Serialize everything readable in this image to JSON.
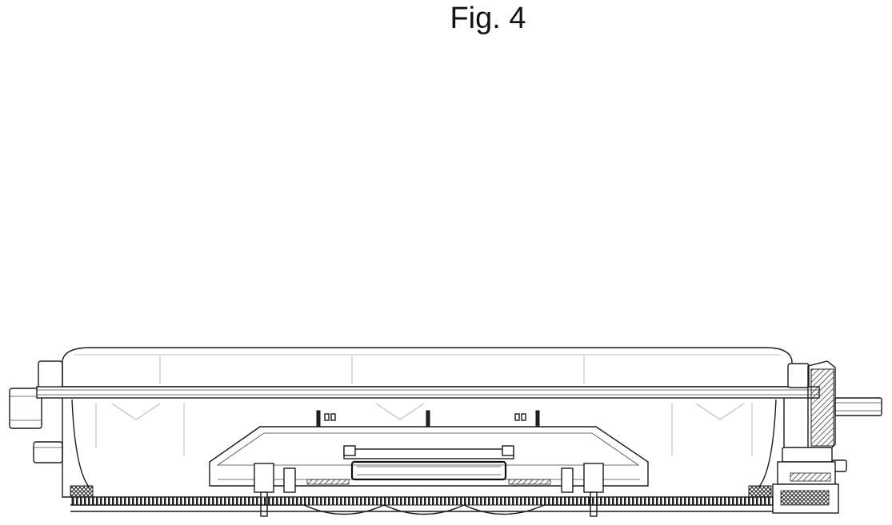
{
  "figure": {
    "title": "Fig. 4"
  }
}
